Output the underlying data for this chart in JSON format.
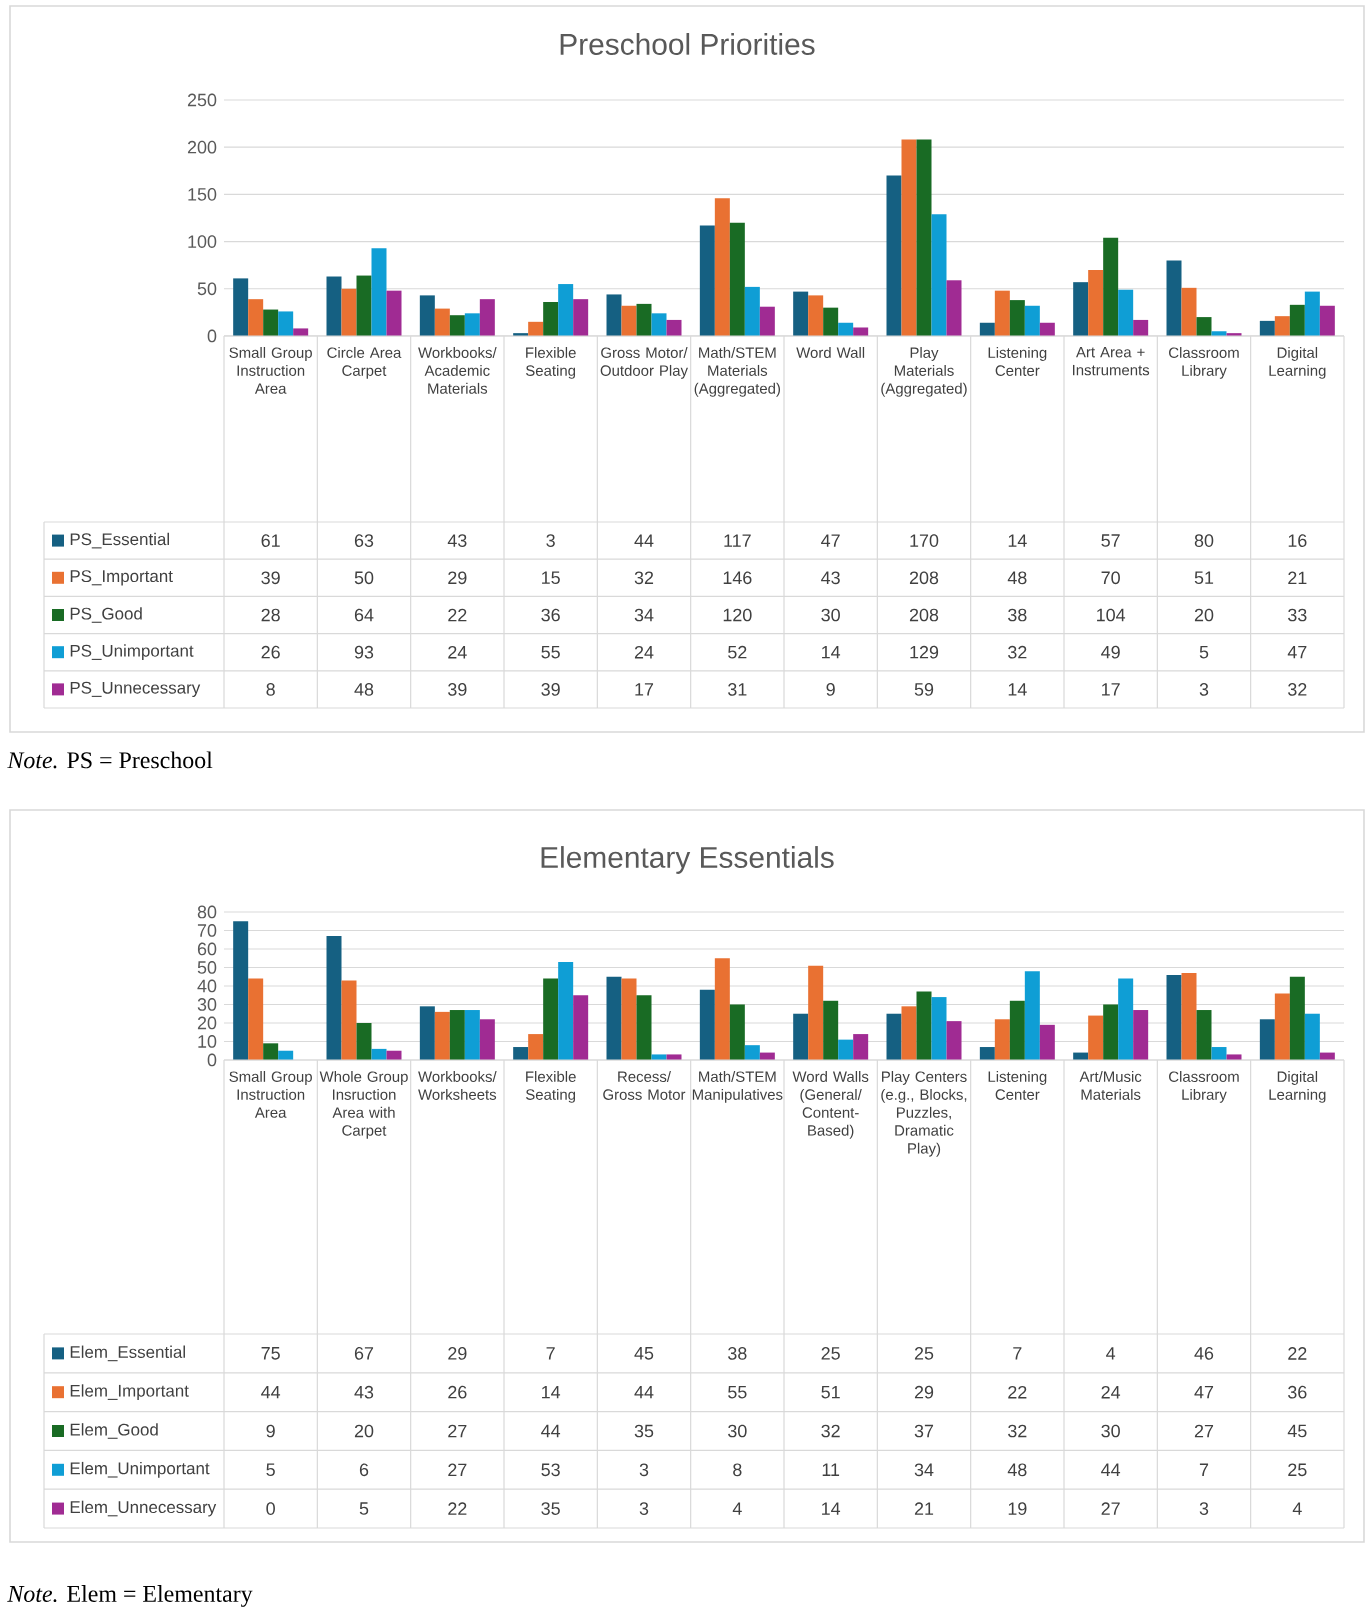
{
  "chart_data": [
    {
      "type": "bar",
      "title": "Preschool Priorities",
      "categories": [
        "Small Group Instruction Area",
        "Circle Area Carpet",
        "Workbooks/Academic Materials",
        "Flexible Seating",
        "Gross Motor/Outdoor Play",
        "Math/STEM Materials (Aggregated)",
        "Word Wall",
        "Play Materials (Aggregated)",
        "Listening Center",
        "Art Area + Instruments",
        "Classroom Library",
        "Digital Learning"
      ],
      "series": [
        {
          "name": "PS_Essential",
          "color": "#156082",
          "values": [
            61,
            63,
            43,
            3,
            44,
            117,
            47,
            170,
            14,
            57,
            80,
            16
          ]
        },
        {
          "name": "PS_Important",
          "color": "#e97132",
          "values": [
            39,
            50,
            29,
            15,
            32,
            146,
            43,
            208,
            48,
            70,
            51,
            21
          ]
        },
        {
          "name": "PS_Good",
          "color": "#196b24",
          "values": [
            28,
            64,
            22,
            36,
            34,
            120,
            30,
            208,
            38,
            104,
            20,
            33
          ]
        },
        {
          "name": "PS_Unimportant",
          "color": "#0f9ed5",
          "values": [
            26,
            93,
            24,
            55,
            24,
            52,
            14,
            129,
            32,
            49,
            5,
            47
          ]
        },
        {
          "name": "PS_Unnecessary",
          "color": "#a02b93",
          "values": [
            8,
            48,
            39,
            39,
            17,
            31,
            9,
            59,
            14,
            17,
            3,
            32
          ]
        }
      ],
      "ylim": [
        0,
        250
      ],
      "yticks": [
        0,
        50,
        100,
        150,
        200,
        250
      ],
      "grid": "y",
      "data_labels": true,
      "legend": "bottom",
      "annotations": [
        "*Note.* PS = Preschool"
      ]
    },
    {
      "type": "bar",
      "title": "Elementary Essentials",
      "categories": [
        "Small Group Instruction Area",
        "Whole Group Insruction Area with Carpet",
        "Workbooks/Worksheets",
        "Flexible Seating",
        "Recess/Gross Motor",
        "Math/STEM Manipulatives",
        "Word Walls (General/Content-Based)",
        "Play Centers (e.g., Blocks, Puzzles, Dramatic Play)",
        "Listening Center",
        "Art/Music Materials",
        "Classroom Library",
        "Digital Learning"
      ],
      "series": [
        {
          "name": "Elem_Essential",
          "color": "#156082",
          "values": [
            75,
            67,
            29,
            7,
            45,
            38,
            25,
            25,
            7,
            4,
            46,
            22
          ]
        },
        {
          "name": "Elem_Important",
          "color": "#e97132",
          "values": [
            44,
            43,
            26,
            14,
            44,
            55,
            51,
            29,
            22,
            24,
            47,
            36
          ]
        },
        {
          "name": "Elem_Good",
          "color": "#196b24",
          "values": [
            9,
            20,
            27,
            44,
            35,
            30,
            32,
            37,
            32,
            30,
            27,
            45
          ]
        },
        {
          "name": "Elem_Unimportant",
          "color": "#0f9ed5",
          "values": [
            5,
            6,
            27,
            53,
            3,
            8,
            11,
            34,
            48,
            44,
            7,
            25
          ]
        },
        {
          "name": "Elem_Unnecessary",
          "color": "#a02b93",
          "values": [
            0,
            5,
            22,
            35,
            3,
            4,
            14,
            21,
            19,
            27,
            3,
            4
          ]
        }
      ],
      "ylim": [
        0,
        80
      ],
      "yticks": [
        0,
        10,
        20,
        30,
        40,
        50,
        60,
        70,
        80
      ],
      "grid": "y",
      "data_labels": true,
      "legend": "bottom",
      "annotations": [
        "*Note.* Elem = Elementary"
      ]
    }
  ]
}
